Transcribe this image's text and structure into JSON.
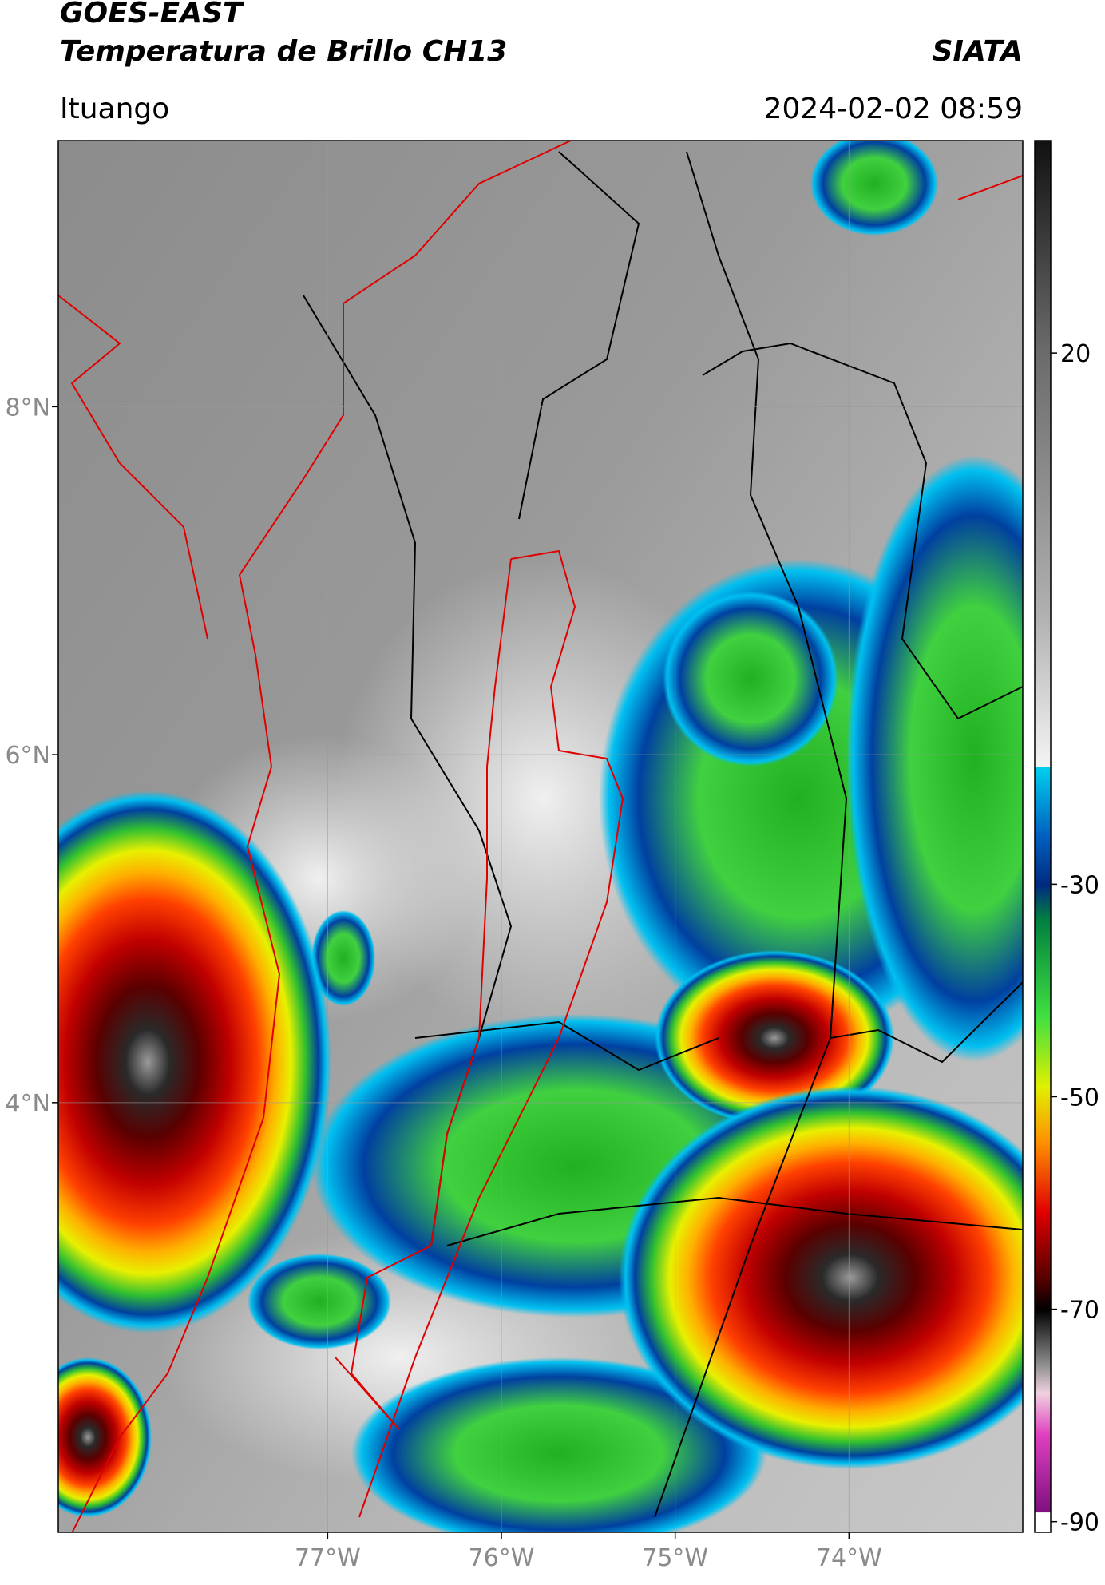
{
  "header": {
    "title": "GOES-EAST",
    "subtitle": "Temperatura de Brillo CH13",
    "source": "SIATA",
    "location": "Ituango",
    "datetime": "2024-02-02 08:59"
  },
  "chart_data": {
    "type": "map",
    "grid": true,
    "xlim": [
      -78.55,
      -73.0
    ],
    "ylim": [
      1.53,
      9.53
    ],
    "xticks": [
      {
        "value": -77,
        "label": "77°W"
      },
      {
        "value": -76,
        "label": "76°W"
      },
      {
        "value": -75,
        "label": "75°W"
      },
      {
        "value": -74,
        "label": "74°W"
      }
    ],
    "yticks": [
      {
        "value": 4,
        "label": "4°N"
      },
      {
        "value": 6,
        "label": "6°N"
      },
      {
        "value": 8,
        "label": "8°N"
      }
    ],
    "colorbar": {
      "lim": [
        -91,
        40
      ],
      "ticks": [
        -90,
        -70,
        -50,
        -30,
        20
      ]
    }
  }
}
